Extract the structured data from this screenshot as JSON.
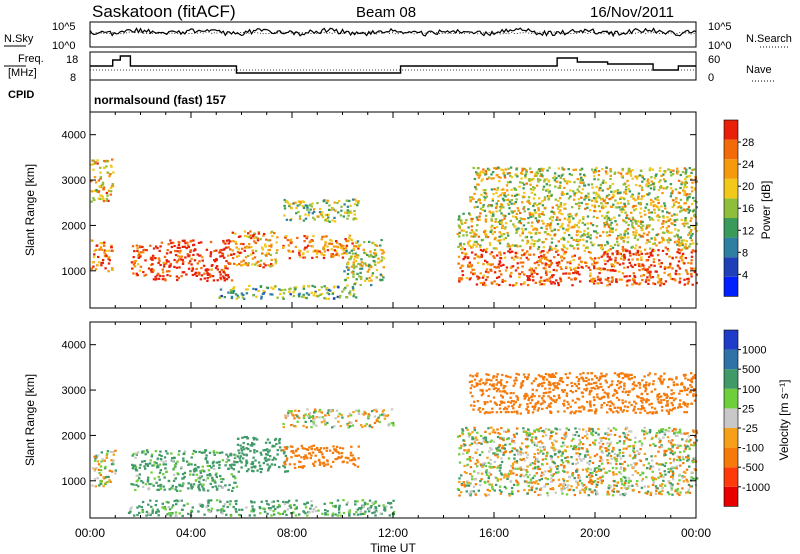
{
  "header": {
    "station": "Saskatoon (fitACF)",
    "beam": "Beam 08",
    "date": "16/Nov/2011"
  },
  "noise_panel": {
    "left_label": "N.Sky",
    "left_ticks": [
      "10^5",
      "10^0"
    ],
    "right_label": "N.Search",
    "right_ticks": [
      "10^5",
      "10^0"
    ]
  },
  "freq_panel": {
    "left_label_line1": "Freq.",
    "left_label_line2": "[MHz]",
    "left_ticks": [
      "18",
      "8"
    ],
    "right_label": "Nave",
    "right_ticks": [
      "60",
      "0"
    ]
  },
  "cpid": {
    "label": "CPID",
    "text": "normalsound (fast) 157"
  },
  "x_axis": {
    "tick_labels": [
      "00:00",
      "04:00",
      "08:00",
      "12:00",
      "16:00",
      "20:00",
      "00:00"
    ],
    "title": "Time UT"
  },
  "chart_data": [
    {
      "type": "heatmap",
      "title": "Power",
      "xlabel": "Time UT",
      "ylabel": "Slant Range [km]",
      "x_range_hours": [
        0,
        24
      ],
      "ylim": [
        180,
        4500
      ],
      "y_ticks": [
        "1000",
        "2000",
        "3000",
        "4000"
      ],
      "colorbar": {
        "label": "Power [dB]",
        "ticks": [
          "4",
          "8",
          "12",
          "16",
          "20",
          "24",
          "28"
        ],
        "range": [
          0,
          30
        ],
        "colors": [
          "#0020ff",
          "#1f3fb8",
          "#2e7fa0",
          "#3a9a5a",
          "#8fbf3a",
          "#f2c81a",
          "#f59a0a",
          "#f26a0a",
          "#e8200a"
        ]
      },
      "regions": [
        {
          "t": [
            0.0,
            0.9
          ],
          "r": [
            1000,
            1700
          ],
          "v": 24
        },
        {
          "t": [
            0.0,
            0.9
          ],
          "r": [
            2500,
            3500
          ],
          "v": 20
        },
        {
          "t": [
            1.6,
            2.4
          ],
          "r": [
            900,
            1600
          ],
          "v": 26
        },
        {
          "t": [
            2.4,
            5.6
          ],
          "r": [
            800,
            1700
          ],
          "v": 29
        },
        {
          "t": [
            5.6,
            7.4
          ],
          "r": [
            1100,
            1900
          ],
          "v": 22
        },
        {
          "t": [
            7.6,
            10.6
          ],
          "r": [
            1300,
            1800
          ],
          "v": 23
        },
        {
          "t": [
            7.6,
            10.6
          ],
          "r": [
            2100,
            2600
          ],
          "v": 15
        },
        {
          "t": [
            10.0,
            11.6
          ],
          "r": [
            700,
            1700
          ],
          "v": 16
        },
        {
          "t": [
            5.0,
            10.5
          ],
          "r": [
            400,
            700
          ],
          "v": 13
        },
        {
          "t": [
            14.5,
            24.0
          ],
          "r": [
            700,
            1500
          ],
          "v": 26
        },
        {
          "t": [
            14.5,
            24.0
          ],
          "r": [
            1500,
            2300
          ],
          "v": 18
        },
        {
          "t": [
            15.0,
            24.0
          ],
          "r": [
            2300,
            3300
          ],
          "v": 17
        }
      ]
    },
    {
      "type": "heatmap",
      "title": "Velocity",
      "xlabel": "Time UT",
      "ylabel": "Slant Range [km]",
      "x_range_hours": [
        0,
        24
      ],
      "ylim": [
        180,
        4500
      ],
      "y_ticks": [
        "1000",
        "2000",
        "3000",
        "4000"
      ],
      "colorbar": {
        "label": "Velocity [m s⁻¹]",
        "ticks": [
          "1000",
          "500",
          "100",
          "25",
          "-25",
          "-100",
          "-500",
          "-1000"
        ],
        "colors": [
          "#1e3cc8",
          "#2f72a8",
          "#3f9a68",
          "#6fcf3a",
          "#c8c8c8",
          "#f5a018",
          "#f57a0a",
          "#ff3a0a",
          "#e80000"
        ]
      },
      "regions": [
        {
          "t": [
            0.0,
            1.0
          ],
          "r": [
            900,
            1700
          ],
          "v": 0
        },
        {
          "t": [
            1.6,
            5.8
          ],
          "r": [
            800,
            1700
          ],
          "v": 100
        },
        {
          "t": [
            5.8,
            7.8
          ],
          "r": [
            1200,
            2000
          ],
          "v": 300
        },
        {
          "t": [
            7.6,
            10.6
          ],
          "r": [
            1300,
            1800
          ],
          "v": -300
        },
        {
          "t": [
            7.6,
            12.0
          ],
          "r": [
            2200,
            2600
          ],
          "v": 0
        },
        {
          "t": [
            14.5,
            24.0
          ],
          "r": [
            700,
            2200
          ],
          "v": 0
        },
        {
          "t": [
            15.0,
            24.0
          ],
          "r": [
            2500,
            3400
          ],
          "v": -300
        },
        {
          "t": [
            1.5,
            12.0
          ],
          "r": [
            250,
            600
          ],
          "v": 100
        }
      ]
    }
  ]
}
